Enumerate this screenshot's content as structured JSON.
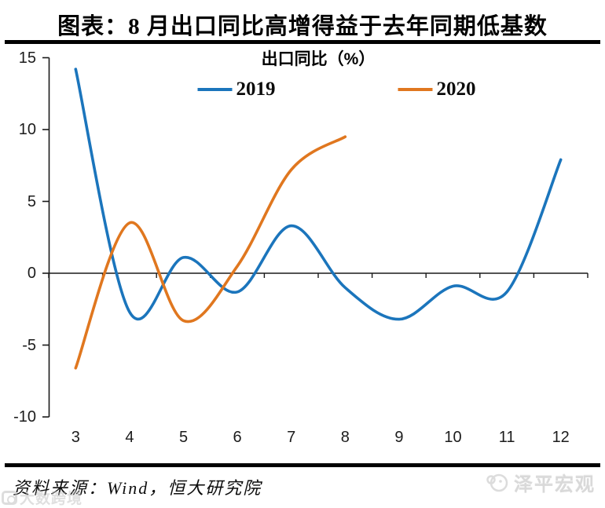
{
  "page": {
    "title": "图表：8 月出口同比高增得益于去年同期低基数",
    "source_line": "资料来源：Wind，恒大研究院",
    "watermark_left": "大数跨境",
    "brand_right": "泽平宏观"
  },
  "chart_data": {
    "type": "line",
    "title": "出口同比（%）",
    "xlabel": "",
    "ylabel": "",
    "categories": [
      "3",
      "4",
      "5",
      "6",
      "7",
      "8",
      "9",
      "10",
      "11",
      "12"
    ],
    "series": [
      {
        "name": "2019",
        "color": "#1b75bc",
        "values": [
          14.2,
          -2.7,
          1.1,
          -1.3,
          3.3,
          -1.0,
          -3.2,
          -0.9,
          -1.3,
          7.9
        ]
      },
      {
        "name": "2020",
        "color": "#e0771f",
        "values": [
          -6.6,
          3.5,
          -3.3,
          0.5,
          7.2,
          9.5
        ]
      }
    ],
    "yticks": [
      15,
      10,
      5,
      0,
      -5,
      -10
    ],
    "ylim": [
      -10,
      15
    ],
    "grid": false,
    "smooth": true,
    "legend_position": "top",
    "axis_color": "#1a1a1a"
  }
}
